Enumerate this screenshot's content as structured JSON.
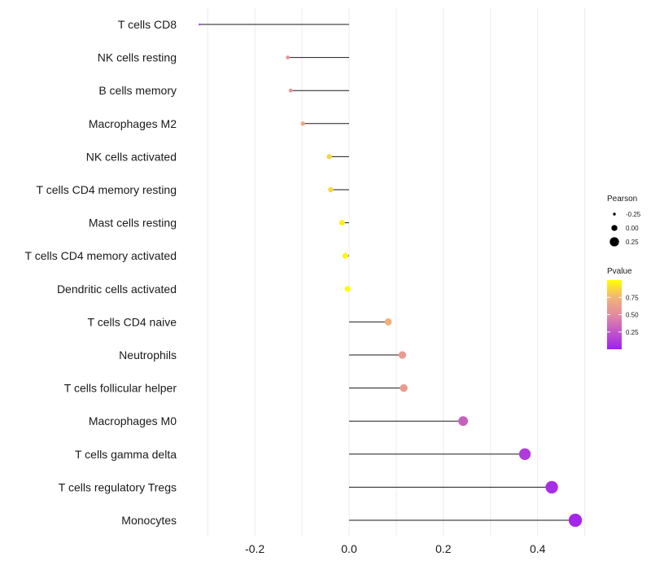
{
  "chart_data": {
    "type": "lollipop",
    "title": "",
    "xlabel": "",
    "ylabel": "",
    "xlim": [
      -0.32,
      0.5
    ],
    "xticks": [
      -0.2,
      0.0,
      0.2,
      0.4
    ],
    "xtick_labels": [
      "-0.2",
      "0.0",
      "0.2",
      "0.4"
    ],
    "grid": true,
    "legend_position": "right",
    "points": [
      {
        "category": "T cells CD8",
        "pearson": -0.317,
        "pvalue": 0.14
      },
      {
        "category": "NK cells resting",
        "pearson": -0.13,
        "pvalue": 0.55
      },
      {
        "category": "B cells memory",
        "pearson": -0.124,
        "pvalue": 0.56
      },
      {
        "category": "Macrophages M2",
        "pearson": -0.098,
        "pvalue": 0.68
      },
      {
        "category": "NK cells activated",
        "pearson": -0.042,
        "pvalue": 0.86
      },
      {
        "category": "T cells CD4 memory resting",
        "pearson": -0.039,
        "pvalue": 0.87
      },
      {
        "category": "Mast cells resting",
        "pearson": -0.015,
        "pvalue": 0.95
      },
      {
        "category": "T cells CD4 memory activated",
        "pearson": -0.008,
        "pvalue": 0.97
      },
      {
        "category": "Dendritic cells activated",
        "pearson": -0.003,
        "pvalue": 0.99
      },
      {
        "category": "T cells CD4 naive",
        "pearson": 0.083,
        "pvalue": 0.72
      },
      {
        "category": "Neutrophils",
        "pearson": 0.113,
        "pvalue": 0.6
      },
      {
        "category": "T cells follicular helper",
        "pearson": 0.116,
        "pvalue": 0.6
      },
      {
        "category": "Macrophages M0",
        "pearson": 0.242,
        "pvalue": 0.3
      },
      {
        "category": "T cells gamma delta",
        "pearson": 0.373,
        "pvalue": 0.12
      },
      {
        "category": "T cells regulatory  Tregs",
        "pearson": 0.43,
        "pvalue": 0.06
      },
      {
        "category": "Monocytes",
        "pearson": 0.48,
        "pvalue": 0.03
      }
    ],
    "size_legend": {
      "title": "Pearson",
      "entries": [
        {
          "label": "-0.25",
          "value": -0.25
        },
        {
          "label": "0.00",
          "value": 0.0
        },
        {
          "label": "0.25",
          "value": 0.25
        }
      ]
    },
    "color_legend": {
      "title": "Pvalue",
      "range": [
        0.0,
        1.0
      ],
      "ticks": [
        {
          "label": "0.75",
          "value": 0.75
        },
        {
          "label": "0.50",
          "value": 0.5
        },
        {
          "label": "0.25",
          "value": 0.25
        }
      ],
      "colors": [
        "#A020F0",
        "#E38BA0",
        "#F2B476",
        "#FFFF00"
      ]
    }
  }
}
